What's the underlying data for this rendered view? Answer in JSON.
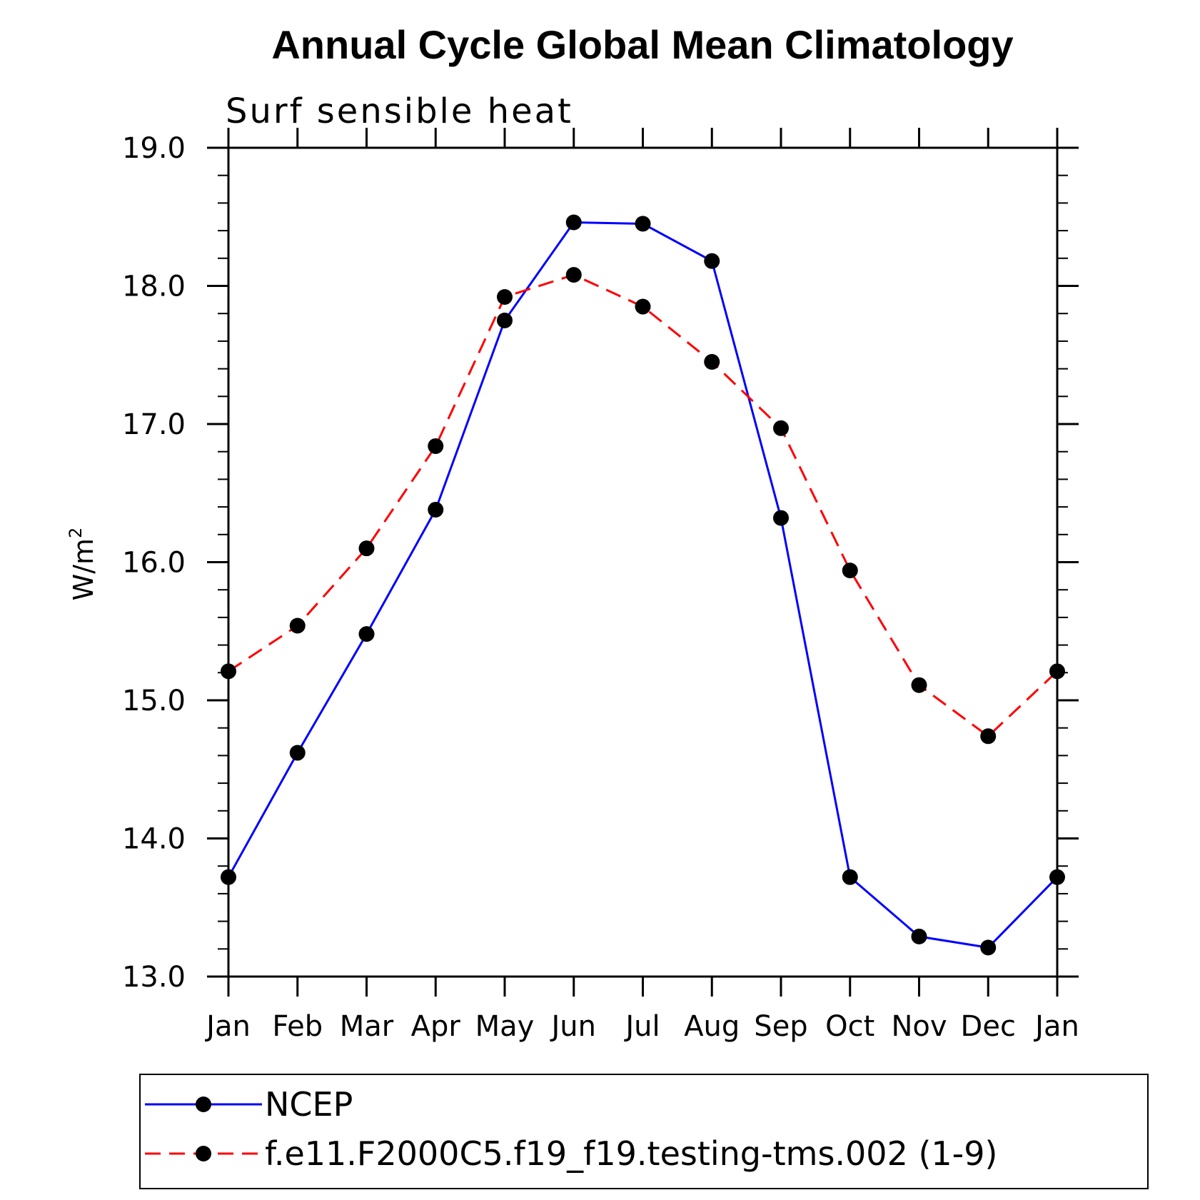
{
  "chart_data": {
    "type": "line",
    "title": "Annual Cycle Global Mean Climatology",
    "subtitle": "Surf sensible heat",
    "ylabel": "W/m",
    "ylabel_superscript": "2",
    "ylim": [
      13.0,
      19.0
    ],
    "yticks": [
      "13.0",
      "14.0",
      "15.0",
      "16.0",
      "17.0",
      "18.0",
      "19.0"
    ],
    "categories": [
      "Jan",
      "Feb",
      "Mar",
      "Apr",
      "May",
      "Jun",
      "Jul",
      "Aug",
      "Sep",
      "Oct",
      "Nov",
      "Dec",
      "Jan"
    ],
    "series": [
      {
        "name": "NCEP",
        "color": "#0000ff",
        "dashed": false,
        "values": [
          13.72,
          14.62,
          15.48,
          16.38,
          17.75,
          18.46,
          18.45,
          18.18,
          16.32,
          13.72,
          13.29,
          13.21,
          13.72
        ]
      },
      {
        "name": "f.e11.F2000C5.f19_f19.testing-tms.002 (1-9)",
        "color": "#ff0000",
        "dashed": true,
        "values": [
          15.21,
          15.54,
          16.1,
          16.84,
          17.92,
          18.08,
          17.85,
          17.45,
          16.97,
          15.94,
          15.11,
          14.74,
          15.21
        ]
      }
    ],
    "marker": "filled-circle",
    "marker_color": "#000000"
  }
}
